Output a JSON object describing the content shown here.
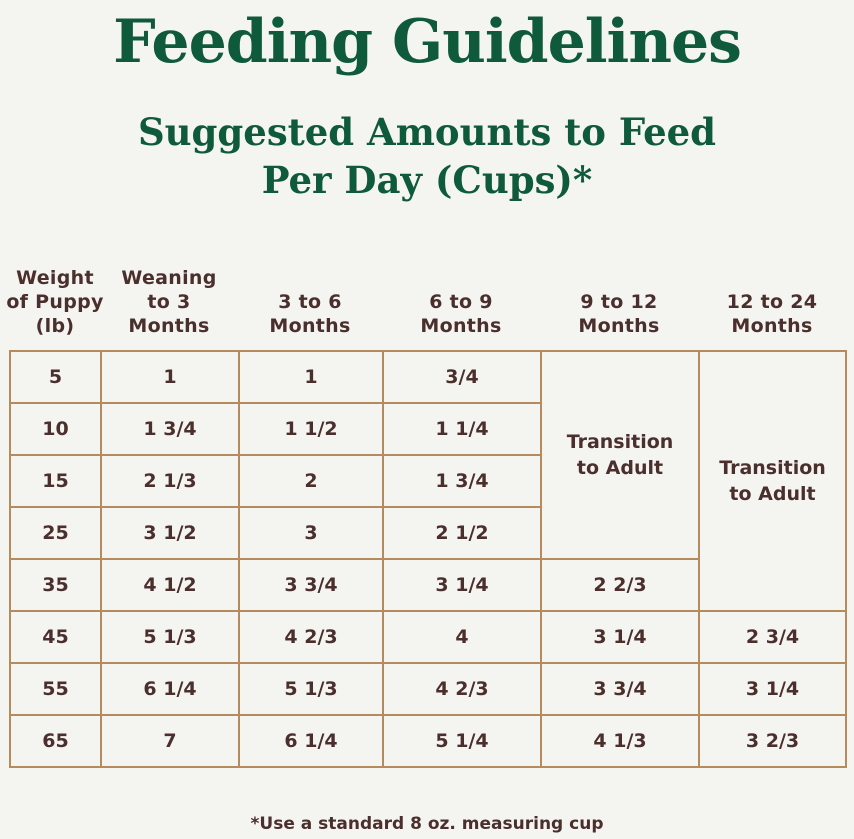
{
  "title": "Feeding Guidelines",
  "subtitle": {
    "line1": "Suggested Amounts to Feed",
    "line2": "Per Day (Cups)*"
  },
  "table": {
    "headers": [
      [
        "Weight",
        "of Puppy",
        "(lb)"
      ],
      [
        "Weaning",
        "to 3",
        "Months"
      ],
      [
        "3 to 6",
        "Months"
      ],
      [
        "6 to 9",
        "Months"
      ],
      [
        "9 to 12",
        "Months"
      ],
      [
        "12 to 24",
        "Months"
      ]
    ],
    "rows": [
      [
        "5",
        "1",
        "1",
        "3/4"
      ],
      [
        "10",
        "1 3/4",
        "1 1/2",
        "1 1/4"
      ],
      [
        "15",
        "2 1/3",
        "2",
        "1 3/4"
      ],
      [
        "25",
        "3 1/2",
        "3",
        "2 1/2"
      ],
      [
        "35",
        "4 1/2",
        "3 3/4",
        "3 1/4",
        "2 2/3"
      ],
      [
        "45",
        "5 1/3",
        "4 2/3",
        "4",
        "3 1/4",
        "2 3/4"
      ],
      [
        "55",
        "6 1/4",
        "5 1/3",
        "4 2/3",
        "3 3/4",
        "3 1/4"
      ],
      [
        "65",
        "7",
        "6 1/4",
        "5 1/4",
        "4 1/3",
        "3 2/3"
      ]
    ],
    "transition_9_12": "Transition to Adult",
    "transition_12_24": "Transition to Adult"
  },
  "footnote": "*Use a standard 8 oz. measuring cup"
}
